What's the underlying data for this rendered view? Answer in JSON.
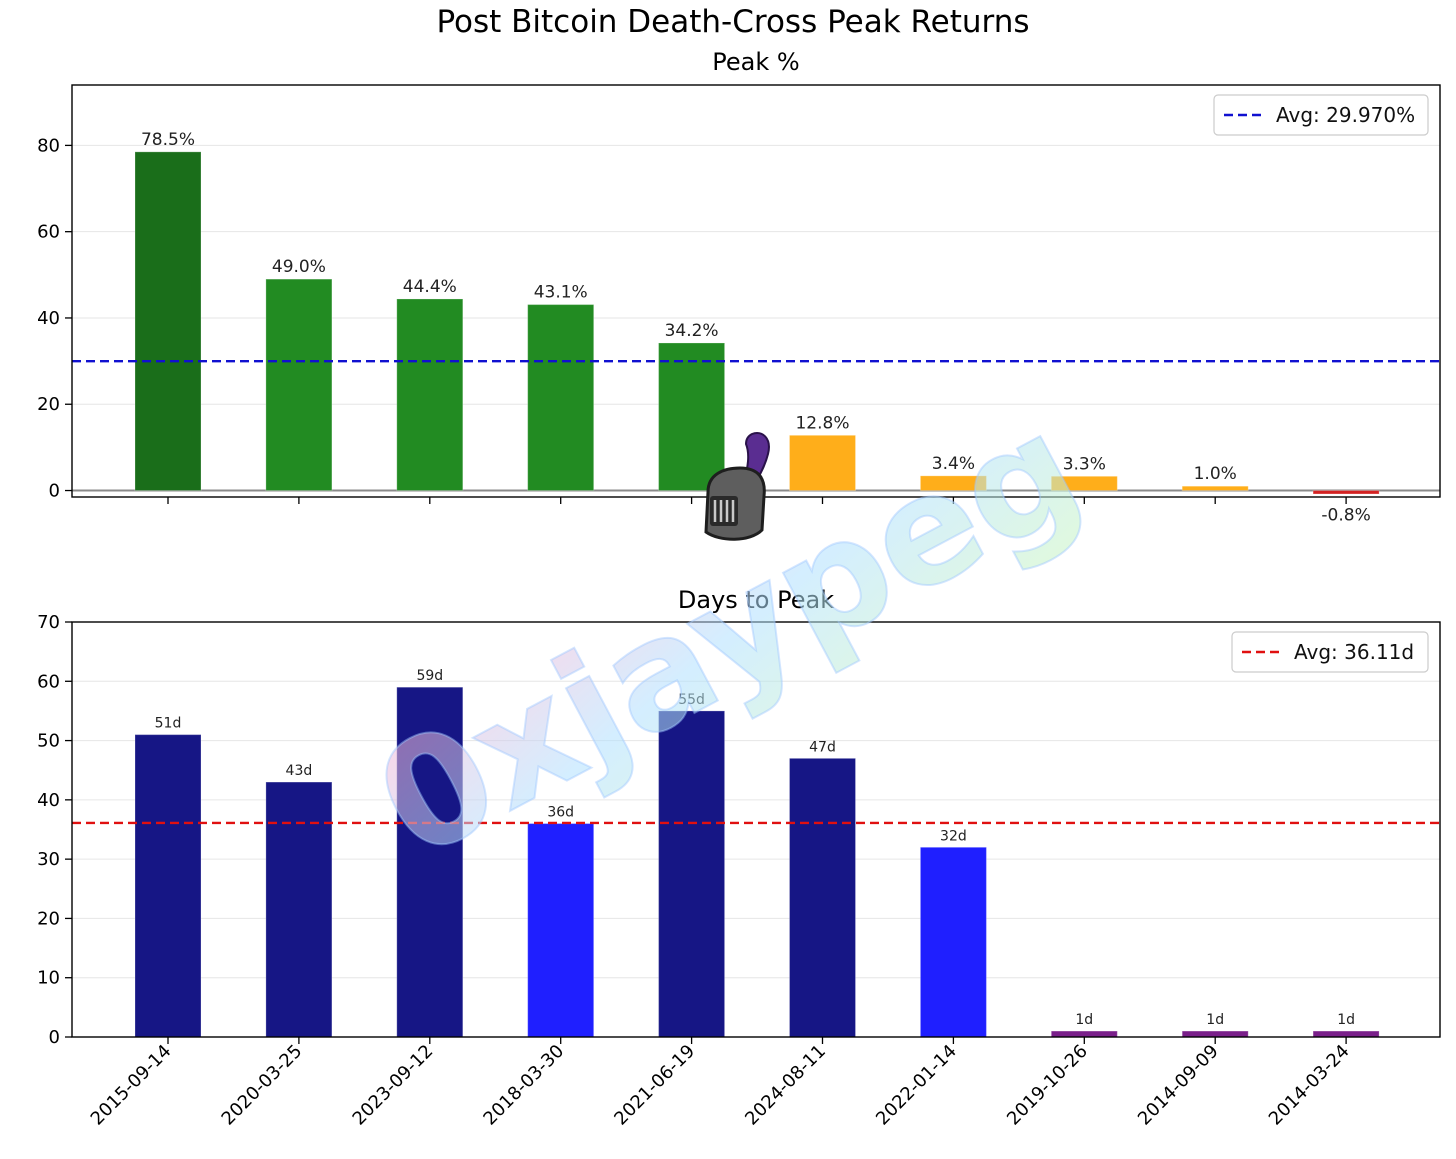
{
  "title": "Post Bitcoin Death-Cross Peak Returns",
  "watermark": "0xjaypeg",
  "chart_data": [
    {
      "type": "bar",
      "title": "Peak %",
      "categories": [
        "2015-09-14",
        "2020-03-25",
        "2023-09-12",
        "2018-03-30",
        "2021-06-19",
        "2024-08-11",
        "2022-01-14",
        "2019-10-26",
        "2014-09-09",
        "2014-03-24"
      ],
      "values": [
        78.5,
        49.0,
        44.4,
        43.1,
        34.2,
        12.8,
        3.4,
        3.3,
        1.0,
        -0.8
      ],
      "labels": [
        "78.5%",
        "49.0%",
        "44.4%",
        "43.1%",
        "34.2%",
        "12.8%",
        "3.4%",
        "3.3%",
        "1.0%",
        "-0.8%"
      ],
      "colors": [
        "#1a6e1a",
        "#228b22",
        "#228b22",
        "#228b22",
        "#228b22",
        "#ffae1a",
        "#ffae1a",
        "#ffae1a",
        "#ffae1a",
        "#d42222"
      ],
      "ylim": [
        -1.5,
        94
      ],
      "yticks": [
        0,
        20,
        40,
        60,
        80
      ],
      "avg": 29.97,
      "avg_color": "#1010d0",
      "legend": "Avg: 29.970%",
      "legend_position": "top-right",
      "grid": true
    },
    {
      "type": "bar",
      "title": "Days to Peak",
      "categories": [
        "2015-09-14",
        "2020-03-25",
        "2023-09-12",
        "2018-03-30",
        "2021-06-19",
        "2024-08-11",
        "2022-01-14",
        "2019-10-26",
        "2014-09-09",
        "2014-03-24"
      ],
      "values": [
        51,
        43,
        59,
        36,
        55,
        47,
        32,
        1,
        1,
        1
      ],
      "labels": [
        "51d",
        "43d",
        "59d",
        "36d",
        "55d",
        "47d",
        "32d",
        "1d",
        "1d",
        "1d"
      ],
      "colors": [
        "#161685",
        "#161685",
        "#161685",
        "#1f1fff",
        "#161685",
        "#161685",
        "#1f1fff",
        "#7a1f8a",
        "#7a1f8a",
        "#7a1f8a"
      ],
      "ylim": [
        0,
        70
      ],
      "yticks": [
        0,
        10,
        20,
        30,
        40,
        50,
        60,
        70
      ],
      "avg": 36.11,
      "avg_color": "#e01010",
      "legend": "Avg: 36.11d",
      "legend_position": "top-right",
      "grid": true
    }
  ]
}
